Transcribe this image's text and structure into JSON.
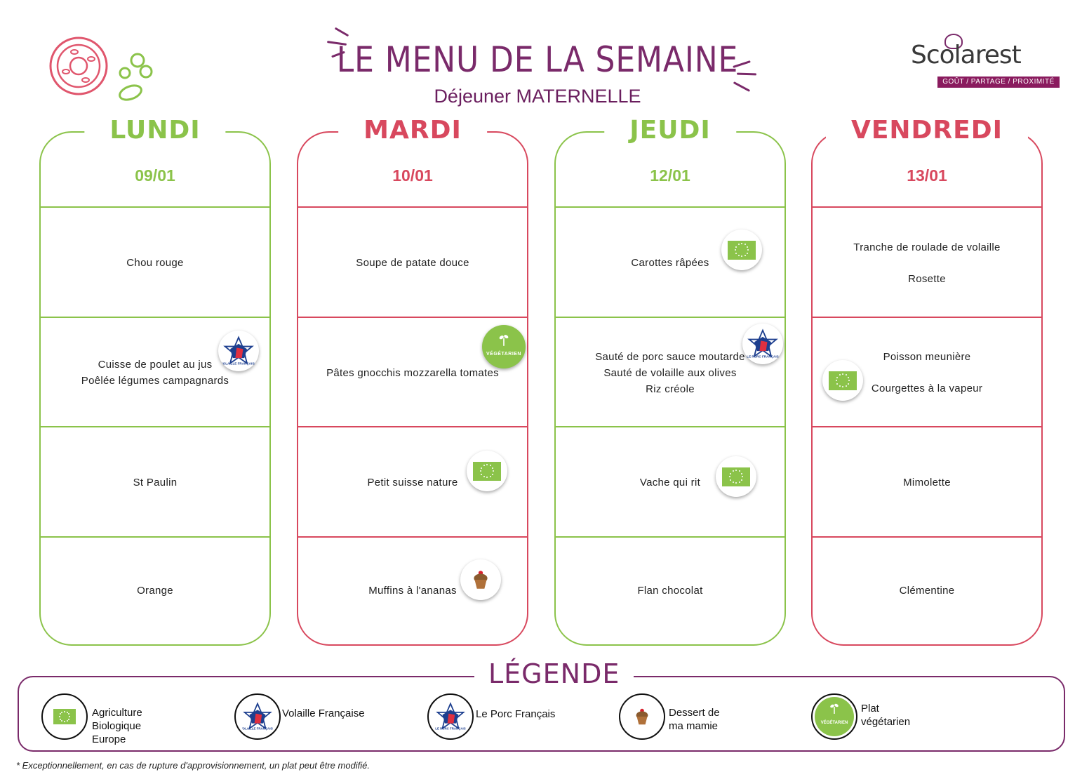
{
  "header": {
    "title": "LE MENU DE LA SEMAINE",
    "subtitle": "Déjeuner MATERNELLE"
  },
  "logo": {
    "wordmark": "Scolarest",
    "tagline": "GOÛT / PARTAGE / PROXIMITÉ"
  },
  "days": [
    {
      "name": "LUNDI",
      "date": "09/01",
      "theme": "green",
      "courses": [
        {
          "lines": [
            "Chou rouge"
          ]
        },
        {
          "lines": [
            "Cuisse de poulet au jus",
            "Poêlée légumes campagnards"
          ],
          "icon": "volaille-francaise-icon"
        },
        {
          "lines": [
            "St Paulin"
          ]
        },
        {
          "lines": [
            "Orange"
          ]
        }
      ]
    },
    {
      "name": "MARDI",
      "date": "10/01",
      "theme": "red",
      "courses": [
        {
          "lines": [
            "Soupe de patate douce"
          ]
        },
        {
          "lines": [
            "Pâtes gnocchis mozzarella tomates"
          ],
          "icon": "vegetarien-icon"
        },
        {
          "lines": [
            "Petit suisse nature"
          ],
          "icon": "agriculture-bio-icon"
        },
        {
          "lines": [
            "Muffins à l'ananas"
          ],
          "icon": "dessert-mamie-icon"
        }
      ]
    },
    {
      "name": "JEUDI",
      "date": "12/01",
      "theme": "green",
      "courses": [
        {
          "lines": [
            "Carottes râpées"
          ],
          "icon": "agriculture-bio-icon"
        },
        {
          "lines": [
            "Sauté de porc sauce moutarde",
            "Sauté de volaille aux olives",
            "Riz créole"
          ],
          "icon": "porc-francais-icon"
        },
        {
          "lines": [
            "Vache qui rit"
          ],
          "icon": "agriculture-bio-icon"
        },
        {
          "lines": [
            "Flan chocolat"
          ]
        }
      ]
    },
    {
      "name": "VENDREDI",
      "date": "13/01",
      "theme": "red",
      "courses": [
        {
          "lines": [
            "Tranche de roulade de volaille",
            "Rosette"
          ]
        },
        {
          "lines": [
            "Poisson meunière",
            "Courgettes à la vapeur"
          ],
          "icon": "agriculture-bio-icon"
        },
        {
          "lines": [
            "Mimolette"
          ]
        },
        {
          "lines": [
            "Clémentine"
          ]
        }
      ]
    }
  ],
  "badges": {
    "vegetarien_label": "VÉGÉTARIEN",
    "volaille_label": "VOLAILLE FRANÇAISE",
    "porc_label": "LE PORC FRANÇAIS"
  },
  "legend": {
    "title": "LÉGENDE",
    "items": [
      {
        "label": "Agriculture\nBiologique\nEurope",
        "icon": "agriculture-bio-icon"
      },
      {
        "label": "Volaille Française",
        "icon": "volaille-francaise-icon"
      },
      {
        "label": "Le Porc Français",
        "icon": "porc-francais-icon"
      },
      {
        "label": "Dessert de\nma mamie",
        "icon": "dessert-mamie-icon"
      },
      {
        "label": "Plat\nvégétarien",
        "icon": "vegetarien-icon"
      }
    ]
  },
  "footnote": "* Exceptionnellement, en cas de rupture d'approvisionnement, un plat peut être modifié.",
  "colors": {
    "green": "#8bc34a",
    "red": "#d8485e",
    "purple": "#7a2a6a"
  }
}
